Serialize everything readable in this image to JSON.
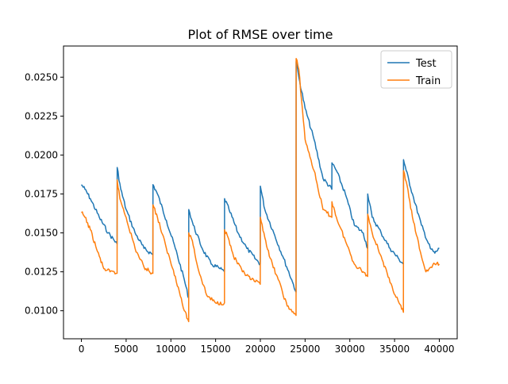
{
  "chart_data": {
    "type": "line",
    "title": "Plot of RMSE over time",
    "xlabel": "",
    "ylabel": "",
    "xlim": [
      -2000,
      42000
    ],
    "ylim": [
      0.0082,
      0.027
    ],
    "x_ticks": [
      0,
      5000,
      10000,
      15000,
      20000,
      25000,
      30000,
      35000,
      40000
    ],
    "x_tick_labels": [
      "0",
      "5000",
      "10000",
      "15000",
      "20000",
      "25000",
      "30000",
      "35000",
      "40000"
    ],
    "y_ticks": [
      0.01,
      0.0125,
      0.015,
      0.0175,
      0.02,
      0.0225,
      0.025
    ],
    "y_tick_labels": [
      "0.0100",
      "0.0125",
      "0.0150",
      "0.0175",
      "0.0200",
      "0.0225",
      "0.0250"
    ],
    "grid": false,
    "legend_position": "top-right",
    "series": [
      {
        "name": "Test",
        "color": "#1f77b4",
        "x": [
          0,
          400,
          1000,
          2000,
          3000,
          3990,
          4000,
          4400,
          5000,
          6000,
          7000,
          7990,
          8000,
          8500,
          9500,
          10500,
          11500,
          11990,
          12000,
          12500,
          13500,
          14500,
          15500,
          15990,
          16000,
          16500,
          17500,
          18500,
          19500,
          19990,
          20000,
          20500,
          21500,
          22500,
          23500,
          23990,
          24000,
          24300,
          25000,
          26000,
          27000,
          27990,
          28000,
          28500,
          29500,
          30500,
          31500,
          31990,
          32000,
          32500,
          33500,
          34500,
          35500,
          35990,
          36000,
          36300,
          37000,
          38000,
          39000,
          39500,
          40000
        ],
        "y": [
          0.0181,
          0.0178,
          0.0172,
          0.016,
          0.015,
          0.0143,
          0.0192,
          0.0178,
          0.0165,
          0.015,
          0.014,
          0.0136,
          0.0181,
          0.0175,
          0.0158,
          0.014,
          0.012,
          0.0108,
          0.0165,
          0.0155,
          0.014,
          0.013,
          0.0127,
          0.0125,
          0.0172,
          0.0165,
          0.015,
          0.014,
          0.0133,
          0.013,
          0.018,
          0.0165,
          0.015,
          0.0135,
          0.012,
          0.0112,
          0.026,
          0.025,
          0.023,
          0.021,
          0.0185,
          0.0178,
          0.0195,
          0.019,
          0.0175,
          0.0155,
          0.015,
          0.014,
          0.0175,
          0.016,
          0.015,
          0.014,
          0.0133,
          0.013,
          0.0197,
          0.019,
          0.0175,
          0.0155,
          0.014,
          0.0137,
          0.014
        ]
      },
      {
        "name": "Train",
        "color": "#ff7f0e",
        "x": [
          0,
          400,
          1000,
          1800,
          2500,
          3200,
          3990,
          4000,
          4300,
          5000,
          6000,
          7000,
          7990,
          8000,
          8500,
          9500,
          10500,
          11500,
          11990,
          12000,
          12400,
          13000,
          14000,
          15000,
          15990,
          16000,
          16400,
          17000,
          18000,
          19000,
          19990,
          20000,
          20400,
          21000,
          22000,
          23000,
          23990,
          24000,
          24300,
          25000,
          26000,
          27000,
          27990,
          28000,
          28500,
          29500,
          30500,
          31500,
          31990,
          32000,
          32500,
          33500,
          34500,
          35500,
          35990,
          36000,
          36300,
          37000,
          38000,
          38500,
          39500,
          40000
        ],
        "y": [
          0.0163,
          0.016,
          0.0152,
          0.0138,
          0.0127,
          0.0125,
          0.0124,
          0.0184,
          0.0172,
          0.016,
          0.014,
          0.0128,
          0.0124,
          0.0168,
          0.016,
          0.014,
          0.0122,
          0.01,
          0.0093,
          0.015,
          0.0145,
          0.0128,
          0.011,
          0.0105,
          0.0105,
          0.0152,
          0.0147,
          0.0135,
          0.0125,
          0.012,
          0.0117,
          0.016,
          0.015,
          0.0135,
          0.012,
          0.0103,
          0.0097,
          0.0262,
          0.0255,
          0.021,
          0.019,
          0.0165,
          0.016,
          0.017,
          0.016,
          0.0145,
          0.013,
          0.0125,
          0.0122,
          0.0162,
          0.015,
          0.0135,
          0.0118,
          0.0105,
          0.0099,
          0.019,
          0.0183,
          0.016,
          0.0135,
          0.0125,
          0.013,
          0.013
        ]
      }
    ]
  }
}
